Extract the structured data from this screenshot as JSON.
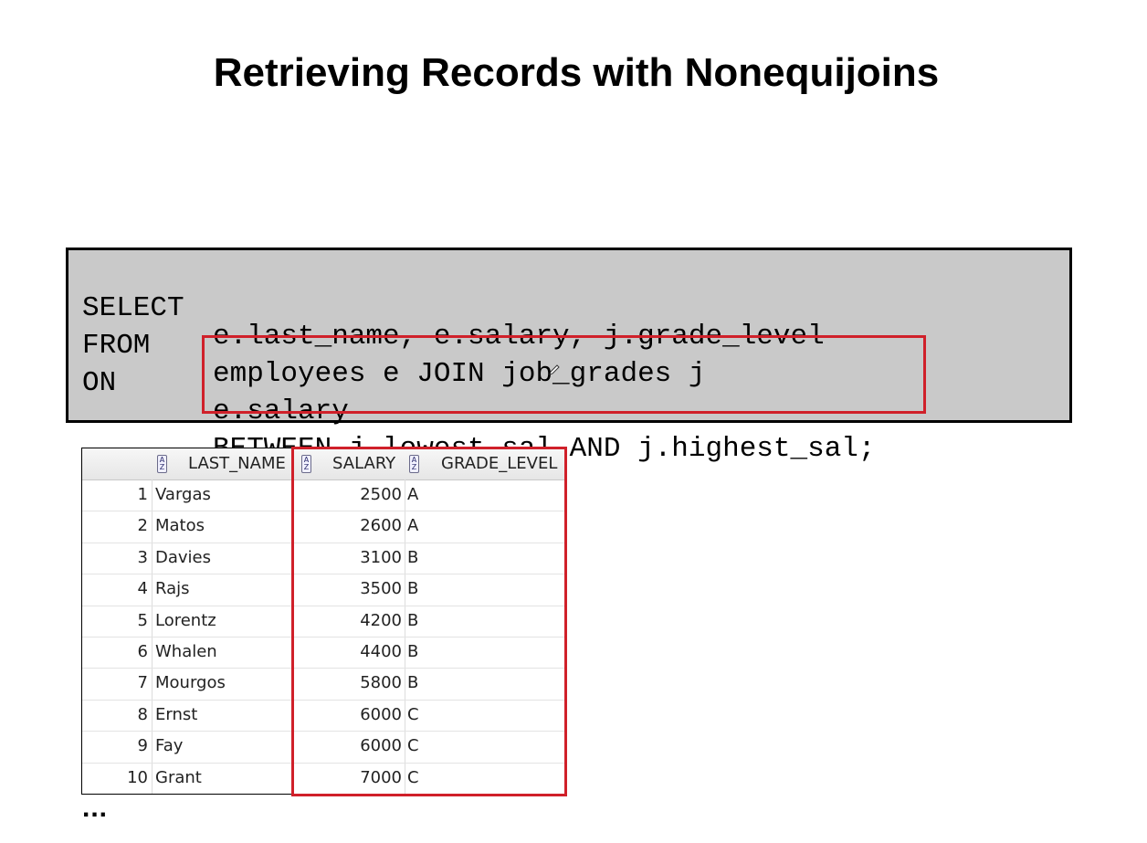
{
  "slide": {
    "title": "Retrieving Records with Nonequijoins"
  },
  "sql": {
    "lines": [
      {
        "keyword": "SELECT",
        "text": "e.last_name, e.salary, j.grade_level"
      },
      {
        "keyword": "FROM",
        "text": "employees e JOIN job_grades j"
      },
      {
        "keyword": "ON",
        "text": "e.salary"
      },
      {
        "keyword": "",
        "text": "BETWEEN j.lowest_sal AND j.highest_sal;"
      }
    ]
  },
  "results": {
    "columns": [
      "LAST_NAME",
      "SALARY",
      "GRADE_LEVEL"
    ],
    "rows": [
      {
        "num": "1",
        "last_name": "Vargas",
        "salary": "2500",
        "grade": "A"
      },
      {
        "num": "2",
        "last_name": "Matos",
        "salary": "2600",
        "grade": "A"
      },
      {
        "num": "3",
        "last_name": "Davies",
        "salary": "3100",
        "grade": "B"
      },
      {
        "num": "4",
        "last_name": "Rajs",
        "salary": "3500",
        "grade": "B"
      },
      {
        "num": "5",
        "last_name": "Lorentz",
        "salary": "4200",
        "grade": "B"
      },
      {
        "num": "6",
        "last_name": "Whalen",
        "salary": "4400",
        "grade": "B"
      },
      {
        "num": "7",
        "last_name": "Mourgos",
        "salary": "5800",
        "grade": "B"
      },
      {
        "num": "8",
        "last_name": "Ernst",
        "salary": "6000",
        "grade": "C"
      },
      {
        "num": "9",
        "last_name": "Fay",
        "salary": "6000",
        "grade": "C"
      },
      {
        "num": "10",
        "last_name": "Grant",
        "salary": "7000",
        "grade": "C"
      }
    ],
    "more": "..."
  },
  "icons": {
    "sort": "sort-az-icon",
    "cursor": "pencil-cursor-icon"
  },
  "colors": {
    "highlight": "#d0202a",
    "code_background": "#c9c9c9"
  }
}
